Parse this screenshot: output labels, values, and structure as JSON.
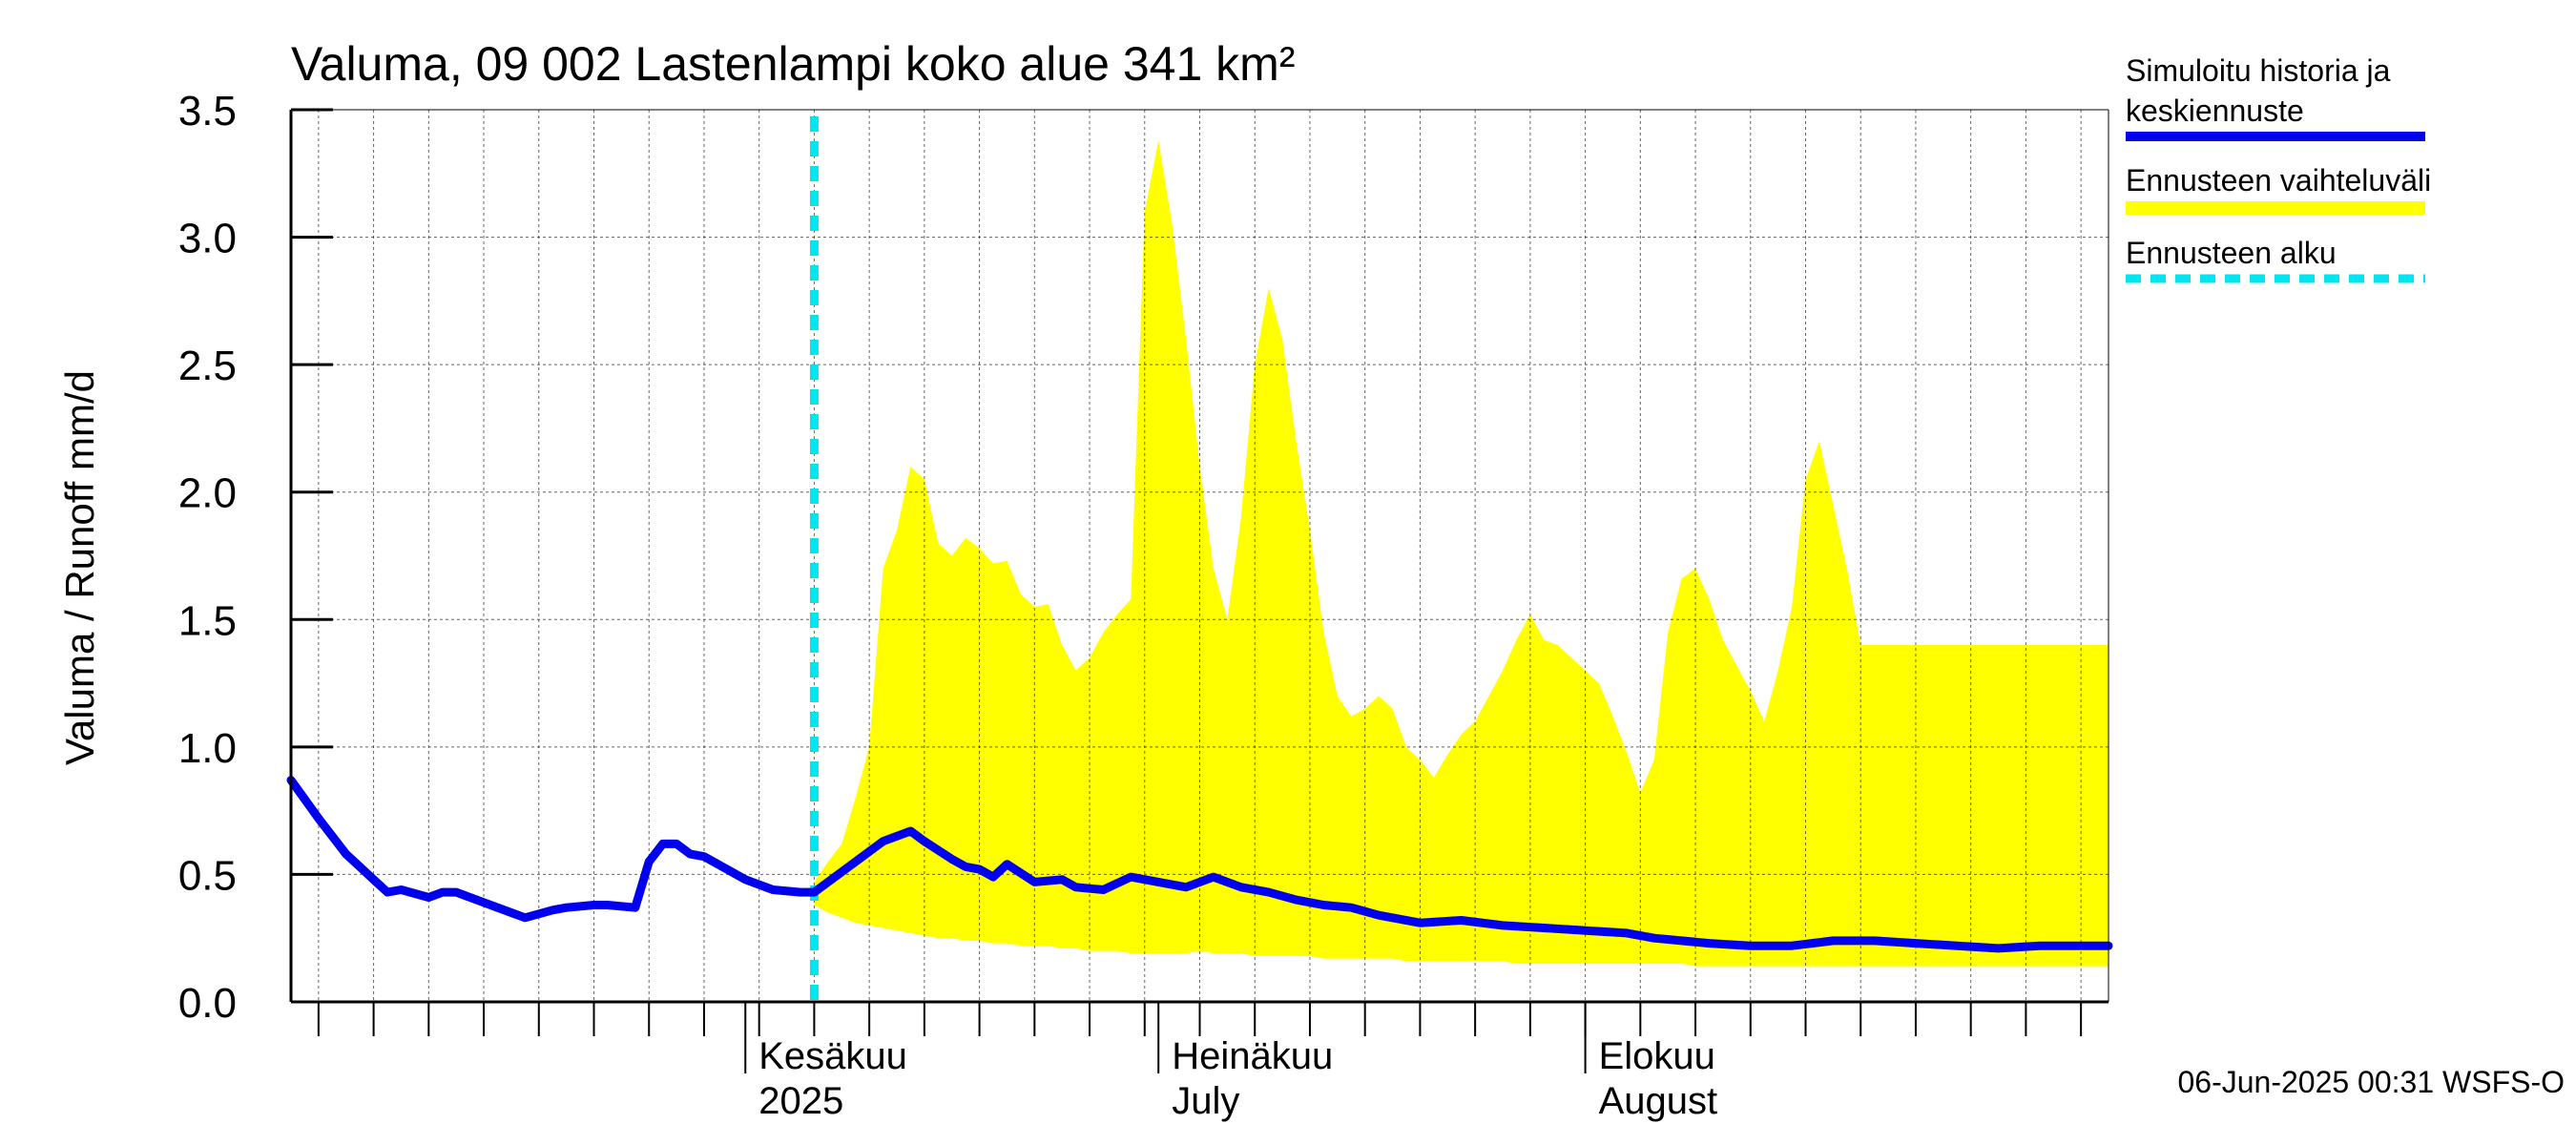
{
  "chart_data": {
    "type": "area",
    "title": "Valuma, 09 002 Lastenlampi koko alue 341 km²",
    "ylabel": "Valuma / Runoff    mm/d",
    "ylim": [
      0,
      3.5
    ],
    "yticks": [
      "0.0",
      "0.5",
      "1.0",
      "1.5",
      "2.0",
      "2.5",
      "3.0",
      "3.5"
    ],
    "xlim": [
      "2025-04-29",
      "2025-09-08"
    ],
    "month_labels": [
      {
        "date": "2025-06-01",
        "line1": "Kesäkuu",
        "line2": "2025"
      },
      {
        "date": "2025-07-01",
        "line1": "Heinäkuu",
        "line2": "July"
      },
      {
        "date": "2025-08-01",
        "line1": "Elokuu",
        "line2": "August"
      }
    ],
    "forecast_start": "2025-06-06",
    "legend": [
      {
        "label_line1": "Simuloitu historia ja",
        "label_line2": "keskiennuste",
        "color": "#0000ee",
        "style": "solid"
      },
      {
        "label_line1": "Ennusteen vaihteluväli",
        "label_line2": "",
        "color": "#ffff00",
        "style": "band"
      },
      {
        "label_line1": "Ennusteen alku",
        "label_line2": "",
        "color": "#00e5ee",
        "style": "dashed"
      }
    ],
    "footer": "06-Jun-2025 00:31 WSFS-O",
    "colors": {
      "median": "#0000ee",
      "band": "#ffff00",
      "forecast_start": "#00e5ee",
      "grid": "#000000"
    },
    "series": [
      {
        "name": "Simuloitu historia ja keskiennuste",
        "x": [
          "2025-04-29",
          "2025-05-01",
          "2025-05-03",
          "2025-05-05",
          "2025-05-06",
          "2025-05-07",
          "2025-05-09",
          "2025-05-10",
          "2025-05-11",
          "2025-05-13",
          "2025-05-15",
          "2025-05-16",
          "2025-05-18",
          "2025-05-19",
          "2025-05-21",
          "2025-05-22",
          "2025-05-24",
          "2025-05-25",
          "2025-05-26",
          "2025-05-27",
          "2025-05-28",
          "2025-05-29",
          "2025-05-30",
          "2025-06-01",
          "2025-06-03",
          "2025-06-05",
          "2025-06-06",
          "2025-06-08",
          "2025-06-09",
          "2025-06-11",
          "2025-06-13",
          "2025-06-14",
          "2025-06-16",
          "2025-06-17",
          "2025-06-18",
          "2025-06-19",
          "2025-06-20",
          "2025-06-22",
          "2025-06-24",
          "2025-06-25",
          "2025-06-27",
          "2025-06-29",
          "2025-07-01",
          "2025-07-03",
          "2025-07-05",
          "2025-07-07",
          "2025-07-09",
          "2025-07-11",
          "2025-07-13",
          "2025-07-15",
          "2025-07-17",
          "2025-07-20",
          "2025-07-23",
          "2025-07-26",
          "2025-07-29",
          "2025-08-01",
          "2025-08-04",
          "2025-08-06",
          "2025-08-08",
          "2025-08-10",
          "2025-08-13",
          "2025-08-16",
          "2025-08-19",
          "2025-08-22",
          "2025-08-25",
          "2025-08-28",
          "2025-08-31",
          "2025-09-03",
          "2025-09-06",
          "2025-09-08"
        ],
        "values": [
          0.87,
          0.72,
          0.58,
          0.48,
          0.43,
          0.44,
          0.41,
          0.43,
          0.43,
          0.39,
          0.35,
          0.33,
          0.36,
          0.37,
          0.38,
          0.38,
          0.37,
          0.55,
          0.62,
          0.62,
          0.58,
          0.57,
          0.54,
          0.48,
          0.44,
          0.43,
          0.43,
          0.51,
          0.55,
          0.63,
          0.67,
          0.63,
          0.56,
          0.53,
          0.52,
          0.49,
          0.54,
          0.47,
          0.48,
          0.45,
          0.44,
          0.49,
          0.47,
          0.45,
          0.49,
          0.45,
          0.43,
          0.4,
          0.38,
          0.37,
          0.34,
          0.31,
          0.32,
          0.3,
          0.29,
          0.28,
          0.27,
          0.25,
          0.24,
          0.23,
          0.22,
          0.22,
          0.24,
          0.24,
          0.23,
          0.22,
          0.21,
          0.22,
          0.22,
          0.22
        ]
      },
      {
        "name": "Ennusteen vaihteluväli",
        "x": [
          "2025-06-06",
          "2025-06-07",
          "2025-06-08",
          "2025-06-09",
          "2025-06-10",
          "2025-06-11",
          "2025-06-12",
          "2025-06-13",
          "2025-06-14",
          "2025-06-15",
          "2025-06-16",
          "2025-06-17",
          "2025-06-18",
          "2025-06-19",
          "2025-06-20",
          "2025-06-21",
          "2025-06-22",
          "2025-06-23",
          "2025-06-24",
          "2025-06-25",
          "2025-06-26",
          "2025-06-27",
          "2025-06-28",
          "2025-06-29",
          "2025-06-30",
          "2025-07-01",
          "2025-07-02",
          "2025-07-03",
          "2025-07-04",
          "2025-07-05",
          "2025-07-06",
          "2025-07-07",
          "2025-07-08",
          "2025-07-09",
          "2025-07-10",
          "2025-07-11",
          "2025-07-12",
          "2025-07-13",
          "2025-07-14",
          "2025-07-15",
          "2025-07-16",
          "2025-07-17",
          "2025-07-18",
          "2025-07-19",
          "2025-07-20",
          "2025-07-21",
          "2025-07-22",
          "2025-07-23",
          "2025-07-24",
          "2025-07-25",
          "2025-07-26",
          "2025-07-27",
          "2025-07-28",
          "2025-07-29",
          "2025-07-30",
          "2025-07-31",
          "2025-08-01",
          "2025-08-02",
          "2025-08-03",
          "2025-08-04",
          "2025-08-05",
          "2025-08-06",
          "2025-08-07",
          "2025-08-08",
          "2025-08-09",
          "2025-08-10",
          "2025-08-11",
          "2025-08-12",
          "2025-08-13",
          "2025-08-14",
          "2025-08-15",
          "2025-08-16",
          "2025-08-17",
          "2025-08-18",
          "2025-08-19",
          "2025-08-20",
          "2025-08-21",
          "2025-08-22",
          "2025-08-23",
          "2025-08-24",
          "2025-08-25",
          "2025-08-26",
          "2025-08-27",
          "2025-08-28",
          "2025-08-29",
          "2025-08-30",
          "2025-08-31",
          "2025-09-01",
          "2025-09-02",
          "2025-09-03",
          "2025-09-04",
          "2025-09-05",
          "2025-09-06",
          "2025-09-07",
          "2025-09-08"
        ],
        "upper": [
          0.47,
          0.55,
          0.62,
          0.8,
          1.0,
          1.7,
          1.85,
          2.1,
          2.05,
          1.8,
          1.75,
          1.82,
          1.78,
          1.72,
          1.73,
          1.6,
          1.55,
          1.56,
          1.4,
          1.3,
          1.35,
          1.45,
          1.52,
          1.58,
          3.1,
          3.38,
          3.05,
          2.6,
          2.1,
          1.7,
          1.5,
          1.9,
          2.5,
          2.8,
          2.6,
          2.2,
          1.85,
          1.45,
          1.2,
          1.12,
          1.15,
          1.2,
          1.15,
          1.0,
          0.95,
          0.88,
          0.97,
          1.05,
          1.1,
          1.2,
          1.3,
          1.42,
          1.52,
          1.42,
          1.4,
          1.35,
          1.3,
          1.25,
          1.12,
          0.98,
          0.82,
          0.95,
          1.45,
          1.66,
          1.7,
          1.58,
          1.42,
          1.32,
          1.22,
          1.1,
          1.3,
          1.55,
          2.05,
          2.2,
          1.95,
          1.7,
          1.4,
          1.4,
          1.4,
          1.4,
          1.4,
          1.4,
          1.4,
          1.4,
          1.4,
          1.4,
          1.4,
          1.4,
          1.4,
          1.4,
          1.4,
          1.4,
          1.4,
          1.4,
          1.4
        ],
        "lower": [
          0.38,
          0.35,
          0.33,
          0.31,
          0.3,
          0.29,
          0.28,
          0.27,
          0.26,
          0.25,
          0.25,
          0.24,
          0.24,
          0.23,
          0.23,
          0.22,
          0.22,
          0.22,
          0.21,
          0.21,
          0.2,
          0.2,
          0.2,
          0.19,
          0.19,
          0.19,
          0.19,
          0.19,
          0.2,
          0.19,
          0.19,
          0.19,
          0.18,
          0.18,
          0.18,
          0.18,
          0.18,
          0.17,
          0.17,
          0.17,
          0.17,
          0.17,
          0.17,
          0.16,
          0.16,
          0.16,
          0.16,
          0.16,
          0.16,
          0.16,
          0.16,
          0.15,
          0.15,
          0.15,
          0.15,
          0.15,
          0.15,
          0.15,
          0.15,
          0.15,
          0.15,
          0.15,
          0.15,
          0.15,
          0.14,
          0.14,
          0.14,
          0.14,
          0.14,
          0.14,
          0.14,
          0.14,
          0.14,
          0.14,
          0.14,
          0.14,
          0.14,
          0.14,
          0.14,
          0.14,
          0.14,
          0.14,
          0.14,
          0.14,
          0.14,
          0.14,
          0.14,
          0.14,
          0.14,
          0.14,
          0.14,
          0.14,
          0.14,
          0.14,
          0.14
        ]
      }
    ]
  }
}
